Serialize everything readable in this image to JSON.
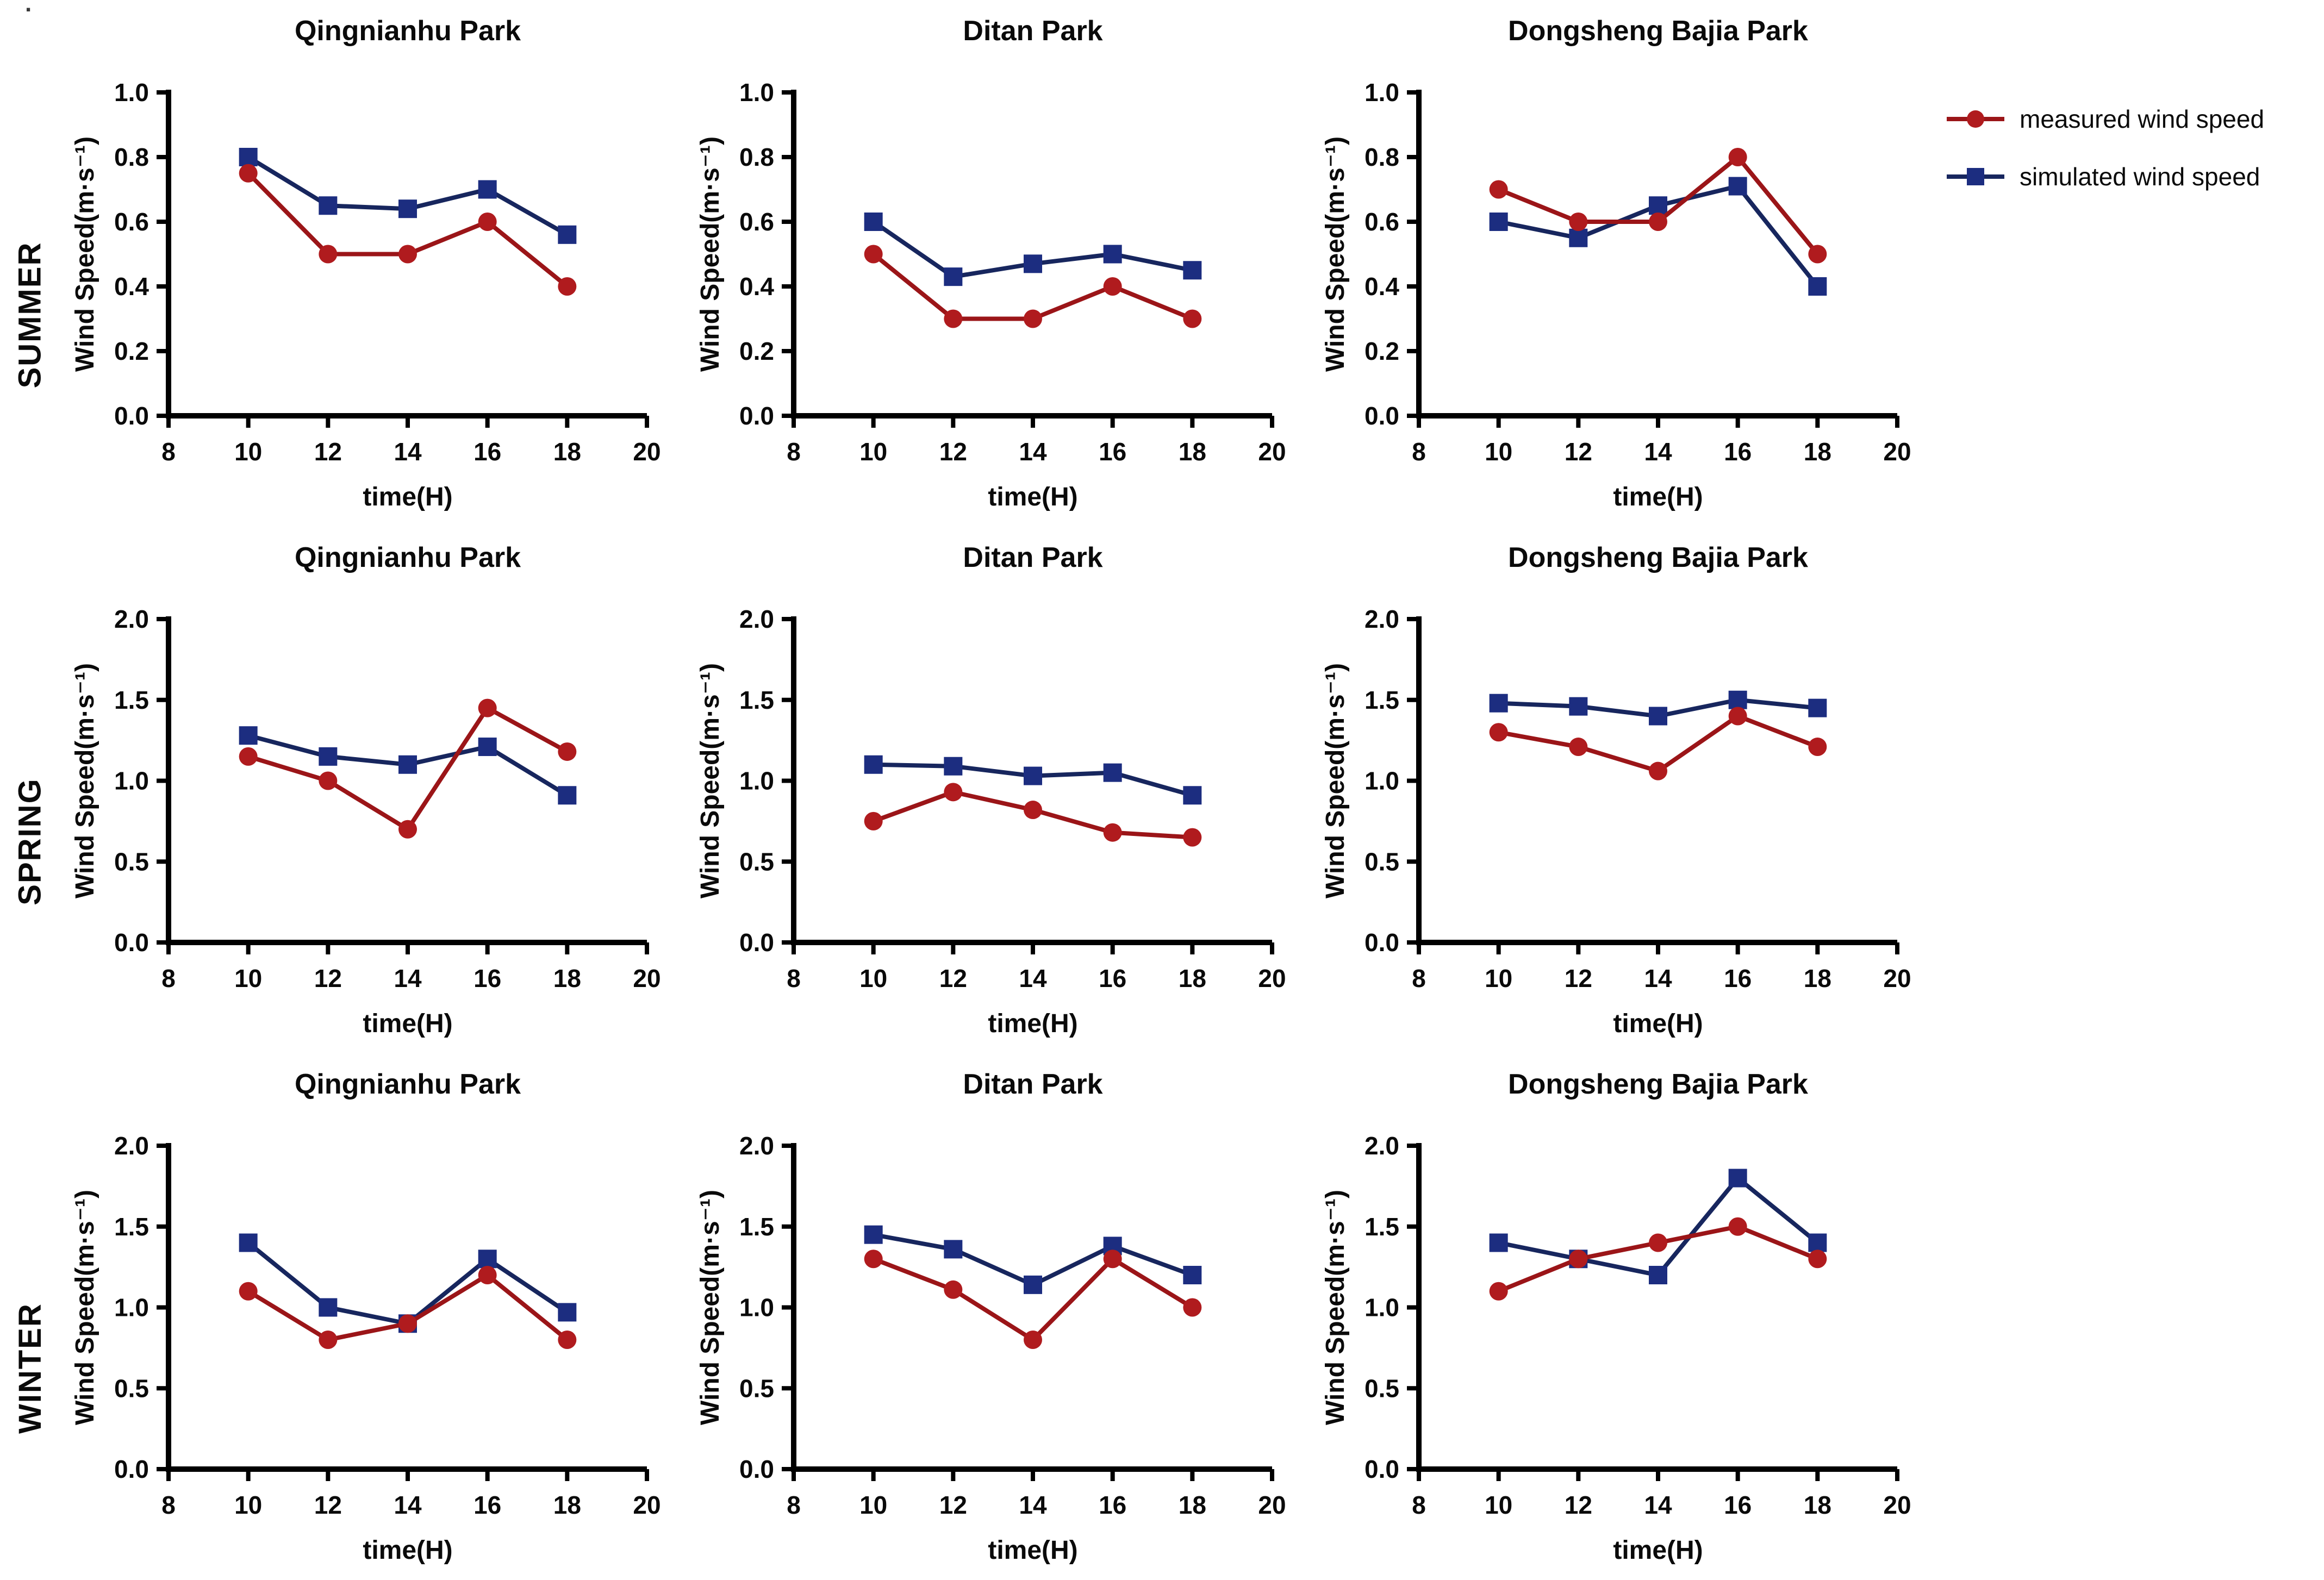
{
  "page": {
    "stray_mark": "."
  },
  "rows": [
    {
      "season": "SUMMER"
    },
    {
      "season": "SPRING"
    },
    {
      "season": "WINTER"
    }
  ],
  "legend": {
    "position": "top-right",
    "items": [
      {
        "label": "measured wind speed",
        "color": "#b01b1e",
        "line_color": "#9b1518",
        "marker": "circle"
      },
      {
        "label": "simulated wind speed",
        "color": "#1c2d80",
        "line_color": "#17265e",
        "marker": "square"
      }
    ]
  },
  "chart_data": [
    {
      "type": "line",
      "season": "SUMMER",
      "title": "Qingnianhu Park",
      "xlabel": "time(H)",
      "ylabel": "Wind Speed(m·s⁻¹)",
      "x": [
        10,
        12,
        14,
        16,
        18
      ],
      "xlim": [
        8,
        20
      ],
      "xticks": [
        8,
        10,
        12,
        14,
        16,
        18,
        20
      ],
      "xtick_labels": [
        "8",
        "10",
        "12",
        "14",
        "16",
        "18",
        "20"
      ],
      "ylim": [
        0,
        1.0
      ],
      "yticks": [
        0,
        0.2,
        0.4,
        0.6,
        0.8,
        1.0
      ],
      "ytick_labels": [
        "0.0",
        "0.2",
        "0.4",
        "0.6",
        "0.8",
        "1.0"
      ],
      "grid": false,
      "series": [
        {
          "name": "measured wind speed",
          "values": [
            0.75,
            0.5,
            0.5,
            0.6,
            0.4
          ]
        },
        {
          "name": "simulated wind speed",
          "values": [
            0.8,
            0.65,
            0.64,
            0.7,
            0.56
          ]
        }
      ]
    },
    {
      "type": "line",
      "season": "SUMMER",
      "title": "Ditan Park",
      "xlabel": "time(H)",
      "ylabel": "Wind Speed(m·s⁻¹)",
      "x": [
        10,
        12,
        14,
        16,
        18
      ],
      "xlim": [
        8,
        20
      ],
      "xticks": [
        8,
        10,
        12,
        14,
        16,
        18,
        20
      ],
      "xtick_labels": [
        "8",
        "10",
        "12",
        "14",
        "16",
        "18",
        "20"
      ],
      "ylim": [
        0,
        1.0
      ],
      "yticks": [
        0,
        0.2,
        0.4,
        0.6,
        0.8,
        1.0
      ],
      "ytick_labels": [
        "0.0",
        "0.2",
        "0.4",
        "0.6",
        "0.8",
        "1.0"
      ],
      "grid": false,
      "series": [
        {
          "name": "measured wind speed",
          "values": [
            0.5,
            0.3,
            0.3,
            0.4,
            0.3
          ]
        },
        {
          "name": "simulated wind speed",
          "values": [
            0.6,
            0.43,
            0.47,
            0.5,
            0.45
          ]
        }
      ]
    },
    {
      "type": "line",
      "season": "SUMMER",
      "title": "Dongsheng Bajia Park",
      "xlabel": "time(H)",
      "ylabel": "Wind Speed(m·s⁻¹)",
      "x": [
        10,
        12,
        14,
        16,
        18
      ],
      "xlim": [
        8,
        20
      ],
      "xticks": [
        8,
        10,
        12,
        14,
        16,
        18,
        20
      ],
      "xtick_labels": [
        "8",
        "10",
        "12",
        "14",
        "16",
        "18",
        "20"
      ],
      "ylim": [
        0,
        1.0
      ],
      "yticks": [
        0,
        0.2,
        0.4,
        0.6,
        0.8,
        1.0
      ],
      "ytick_labels": [
        "0.0",
        "0.2",
        "0.4",
        "0.6",
        "0.8",
        "1.0"
      ],
      "grid": false,
      "series": [
        {
          "name": "measured wind speed",
          "values": [
            0.7,
            0.6,
            0.6,
            0.8,
            0.5
          ]
        },
        {
          "name": "simulated wind speed",
          "values": [
            0.6,
            0.55,
            0.65,
            0.71,
            0.4
          ]
        }
      ]
    },
    {
      "type": "line",
      "season": "SPRING",
      "title": "Qingnianhu Park",
      "xlabel": "time(H)",
      "ylabel": "Wind Speed(m·s⁻¹)",
      "x": [
        10,
        12,
        14,
        16,
        18
      ],
      "xlim": [
        8,
        20
      ],
      "xticks": [
        8,
        10,
        12,
        14,
        16,
        18,
        20
      ],
      "xtick_labels": [
        "8",
        "10",
        "12",
        "14",
        "16",
        "18",
        "20"
      ],
      "ylim": [
        0,
        2.0
      ],
      "yticks": [
        0,
        0.5,
        1.0,
        1.5,
        2.0
      ],
      "ytick_labels": [
        "0.0",
        "0.5",
        "1.0",
        "1.5",
        "2.0"
      ],
      "grid": false,
      "series": [
        {
          "name": "measured wind speed",
          "values": [
            1.15,
            1.0,
            0.7,
            1.45,
            1.18
          ]
        },
        {
          "name": "simulated wind speed",
          "values": [
            1.28,
            1.15,
            1.1,
            1.21,
            0.91
          ]
        }
      ]
    },
    {
      "type": "line",
      "season": "SPRING",
      "title": "Ditan Park",
      "xlabel": "time(H)",
      "ylabel": "Wind Speed(m·s⁻¹)",
      "x": [
        10,
        12,
        14,
        16,
        18
      ],
      "xlim": [
        8,
        20
      ],
      "xticks": [
        8,
        10,
        12,
        14,
        16,
        18,
        20
      ],
      "xtick_labels": [
        "8",
        "10",
        "12",
        "14",
        "16",
        "18",
        "20"
      ],
      "ylim": [
        0,
        2.0
      ],
      "yticks": [
        0,
        0.5,
        1.0,
        1.5,
        2.0
      ],
      "ytick_labels": [
        "0.0",
        "0.5",
        "1.0",
        "1.5",
        "2.0"
      ],
      "grid": false,
      "series": [
        {
          "name": "measured wind speed",
          "values": [
            0.75,
            0.93,
            0.82,
            0.68,
            0.65
          ]
        },
        {
          "name": "simulated wind speed",
          "values": [
            1.1,
            1.09,
            1.03,
            1.05,
            0.91
          ]
        }
      ]
    },
    {
      "type": "line",
      "season": "SPRING",
      "title": "Dongsheng Bajia Park",
      "xlabel": "time(H)",
      "ylabel": "Wind Speed(m·s⁻¹)",
      "x": [
        10,
        12,
        14,
        16,
        18
      ],
      "xlim": [
        8,
        20
      ],
      "xticks": [
        8,
        10,
        12,
        14,
        16,
        18,
        20
      ],
      "xtick_labels": [
        "8",
        "10",
        "12",
        "14",
        "16",
        "18",
        "20"
      ],
      "ylim": [
        0,
        2.0
      ],
      "yticks": [
        0,
        0.5,
        1.0,
        1.5,
        2.0
      ],
      "ytick_labels": [
        "0.0",
        "0.5",
        "1.0",
        "1.5",
        "2.0"
      ],
      "grid": false,
      "series": [
        {
          "name": "measured wind speed",
          "values": [
            1.3,
            1.21,
            1.06,
            1.4,
            1.21
          ]
        },
        {
          "name": "simulated wind speed",
          "values": [
            1.48,
            1.46,
            1.4,
            1.5,
            1.45
          ]
        }
      ]
    },
    {
      "type": "line",
      "season": "WINTER",
      "title": "Qingnianhu Park",
      "xlabel": "time(H)",
      "ylabel": "Wind Speed(m·s⁻¹)",
      "x": [
        10,
        12,
        14,
        16,
        18
      ],
      "xlim": [
        8,
        20
      ],
      "xticks": [
        8,
        10,
        12,
        14,
        16,
        18,
        20
      ],
      "xtick_labels": [
        "8",
        "10",
        "12",
        "14",
        "16",
        "18",
        "20"
      ],
      "ylim": [
        0,
        2.0
      ],
      "yticks": [
        0,
        0.5,
        1.0,
        1.5,
        2.0
      ],
      "ytick_labels": [
        "0.0",
        "0.5",
        "1.0",
        "1.5",
        "2.0"
      ],
      "grid": false,
      "series": [
        {
          "name": "measured wind speed",
          "values": [
            1.1,
            0.8,
            0.9,
            1.2,
            0.8
          ]
        },
        {
          "name": "simulated wind speed",
          "values": [
            1.4,
            1.0,
            0.9,
            1.3,
            0.97
          ]
        }
      ]
    },
    {
      "type": "line",
      "season": "WINTER",
      "title": "Ditan Park",
      "xlabel": "time(H)",
      "ylabel": "Wind Speed(m·s⁻¹)",
      "x": [
        10,
        12,
        14,
        16,
        18
      ],
      "xlim": [
        8,
        20
      ],
      "xticks": [
        8,
        10,
        12,
        14,
        16,
        18,
        20
      ],
      "xtick_labels": [
        "8",
        "10",
        "12",
        "14",
        "16",
        "18",
        "20"
      ],
      "ylim": [
        0,
        2.0
      ],
      "yticks": [
        0,
        0.5,
        1.0,
        1.5,
        2.0
      ],
      "ytick_labels": [
        "0.0",
        "0.5",
        "1.0",
        "1.5",
        "2.0"
      ],
      "grid": false,
      "series": [
        {
          "name": "measured wind speed",
          "values": [
            1.3,
            1.11,
            0.8,
            1.3,
            1.0
          ]
        },
        {
          "name": "simulated wind speed",
          "values": [
            1.45,
            1.36,
            1.14,
            1.38,
            1.2
          ]
        }
      ]
    },
    {
      "type": "line",
      "season": "WINTER",
      "title": "Dongsheng Bajia Park",
      "xlabel": "time(H)",
      "ylabel": "Wind Speed(m·s⁻¹)",
      "x": [
        10,
        12,
        14,
        16,
        18
      ],
      "xlim": [
        8,
        20
      ],
      "xticks": [
        8,
        10,
        12,
        14,
        16,
        18,
        20
      ],
      "xtick_labels": [
        "8",
        "10",
        "12",
        "14",
        "16",
        "18",
        "20"
      ],
      "ylim": [
        0,
        2.0
      ],
      "yticks": [
        0,
        0.5,
        1.0,
        1.5,
        2.0
      ],
      "ytick_labels": [
        "0.0",
        "0.5",
        "1.0",
        "1.5",
        "2.0"
      ],
      "grid": false,
      "series": [
        {
          "name": "measured wind speed",
          "values": [
            1.1,
            1.3,
            1.4,
            1.5,
            1.3
          ]
        },
        {
          "name": "simulated wind speed",
          "values": [
            1.4,
            1.3,
            1.2,
            1.8,
            1.4
          ]
        }
      ]
    }
  ]
}
